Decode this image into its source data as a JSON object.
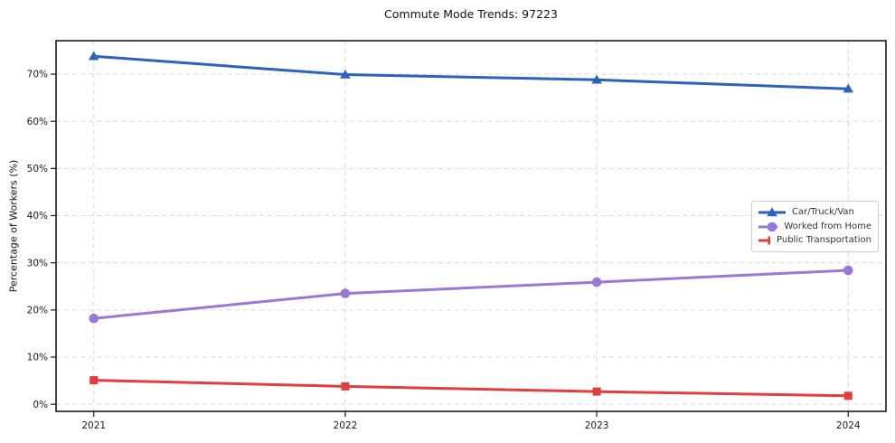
{
  "figure": {
    "title": "Commute Mode Trends: 97223",
    "y_axis_label": "Percentage of Workers (%)"
  },
  "chart_data": {
    "type": "line",
    "title": "Commute Mode Trends: 97223",
    "xlabel": "",
    "ylabel": "Percentage of Workers (%)",
    "categories": [
      "2021",
      "2022",
      "2023",
      "2024"
    ],
    "series": [
      {
        "name": "Car/Truck/Van",
        "values": [
          73.8,
          69.9,
          68.8,
          66.9
        ],
        "color": "#2b62bd",
        "marker": "triangle"
      },
      {
        "name": "Worked from Home",
        "values": [
          18.2,
          23.5,
          25.9,
          28.4
        ],
        "color": "#9878d6",
        "marker": "circle"
      },
      {
        "name": "Public Transportation",
        "values": [
          5.1,
          3.8,
          2.7,
          1.8
        ],
        "color": "#e23e3e",
        "marker": "square"
      }
    ],
    "yticks": [
      0,
      10,
      20,
      30,
      40,
      50,
      60,
      70
    ],
    "ytick_labels": [
      "0%",
      "10%",
      "20%",
      "30%",
      "40%",
      "50%",
      "60%",
      "70%"
    ],
    "ylim": [
      -1.5,
      77.1
    ],
    "xlim": [
      -0.15,
      3.15
    ],
    "grid": true,
    "grid_style": "dashed",
    "legend_position": "center right"
  },
  "colors": {
    "grid": "#d9d9d9",
    "spine": "#1a1a1a",
    "tick_text": "#1a1a1a",
    "background": "#ffffff",
    "legend_border": "#cccccc"
  }
}
